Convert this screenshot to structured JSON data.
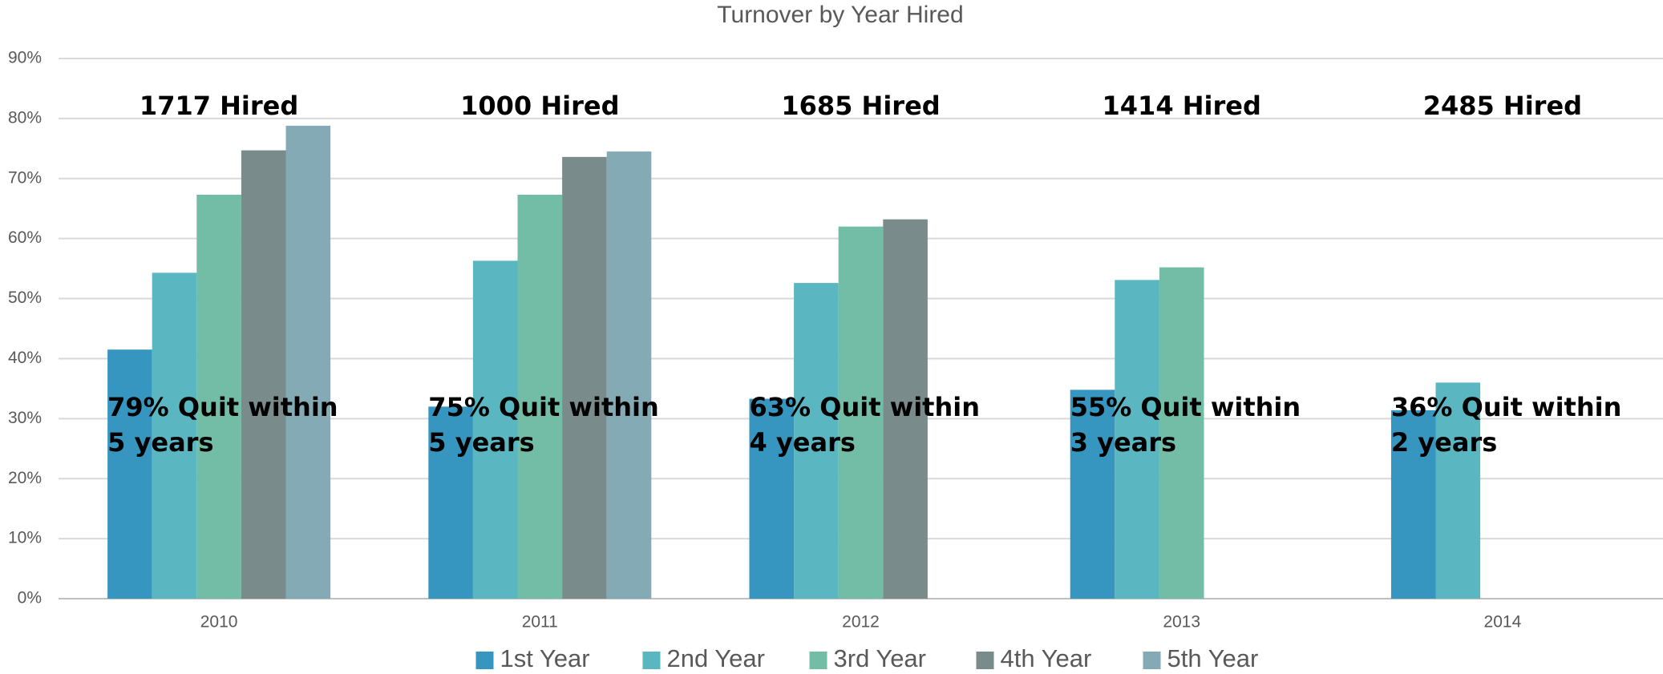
{
  "chart_data": {
    "type": "bar",
    "title": "Turnover by Year Hired",
    "categories": [
      "2010",
      "2011",
      "2012",
      "2013",
      "2014"
    ],
    "series": [
      {
        "name": "1st Year",
        "color": "#3796bf",
        "values": [
          41.5,
          32,
          33.3,
          34.8,
          31.4
        ]
      },
      {
        "name": "2nd Year",
        "color": "#5ab6c1",
        "values": [
          54.3,
          56.3,
          52.6,
          53.1,
          36
        ]
      },
      {
        "name": "3rd Year",
        "color": "#73bca6",
        "values": [
          67.3,
          67.3,
          62,
          55.2,
          null
        ]
      },
      {
        "name": "4th Year",
        "color": "#7a8b8c",
        "values": [
          74.7,
          73.6,
          63.2,
          null,
          null
        ]
      },
      {
        "name": "5th Year",
        "color": "#84abb5",
        "values": [
          78.8,
          74.5,
          null,
          null,
          null
        ]
      }
    ],
    "hired_labels": [
      "1717 Hired",
      "1000 Hired",
      "1685 Hired",
      "1414 Hired",
      "2485 Hired"
    ],
    "quit_labels": [
      "79% Quit within 5 years",
      "75% Quit within 5 years",
      "63% Quit within 4 years",
      "55% Quit within 3 years",
      "36% Quit within 2 years"
    ],
    "ylim": [
      0,
      90
    ],
    "yticks": [
      {
        "value": 0,
        "label": "0%"
      },
      {
        "value": 10,
        "label": "10%"
      },
      {
        "value": 20,
        "label": "20%"
      },
      {
        "value": 30,
        "label": "30%"
      },
      {
        "value": 40,
        "label": "40%"
      },
      {
        "value": 50,
        "label": "50%"
      },
      {
        "value": 60,
        "label": "60%"
      },
      {
        "value": 70,
        "label": "70%"
      },
      {
        "value": 80,
        "label": "80%"
      },
      {
        "value": 90,
        "label": "90%"
      }
    ],
    "grid": true,
    "legend": "bottom"
  }
}
